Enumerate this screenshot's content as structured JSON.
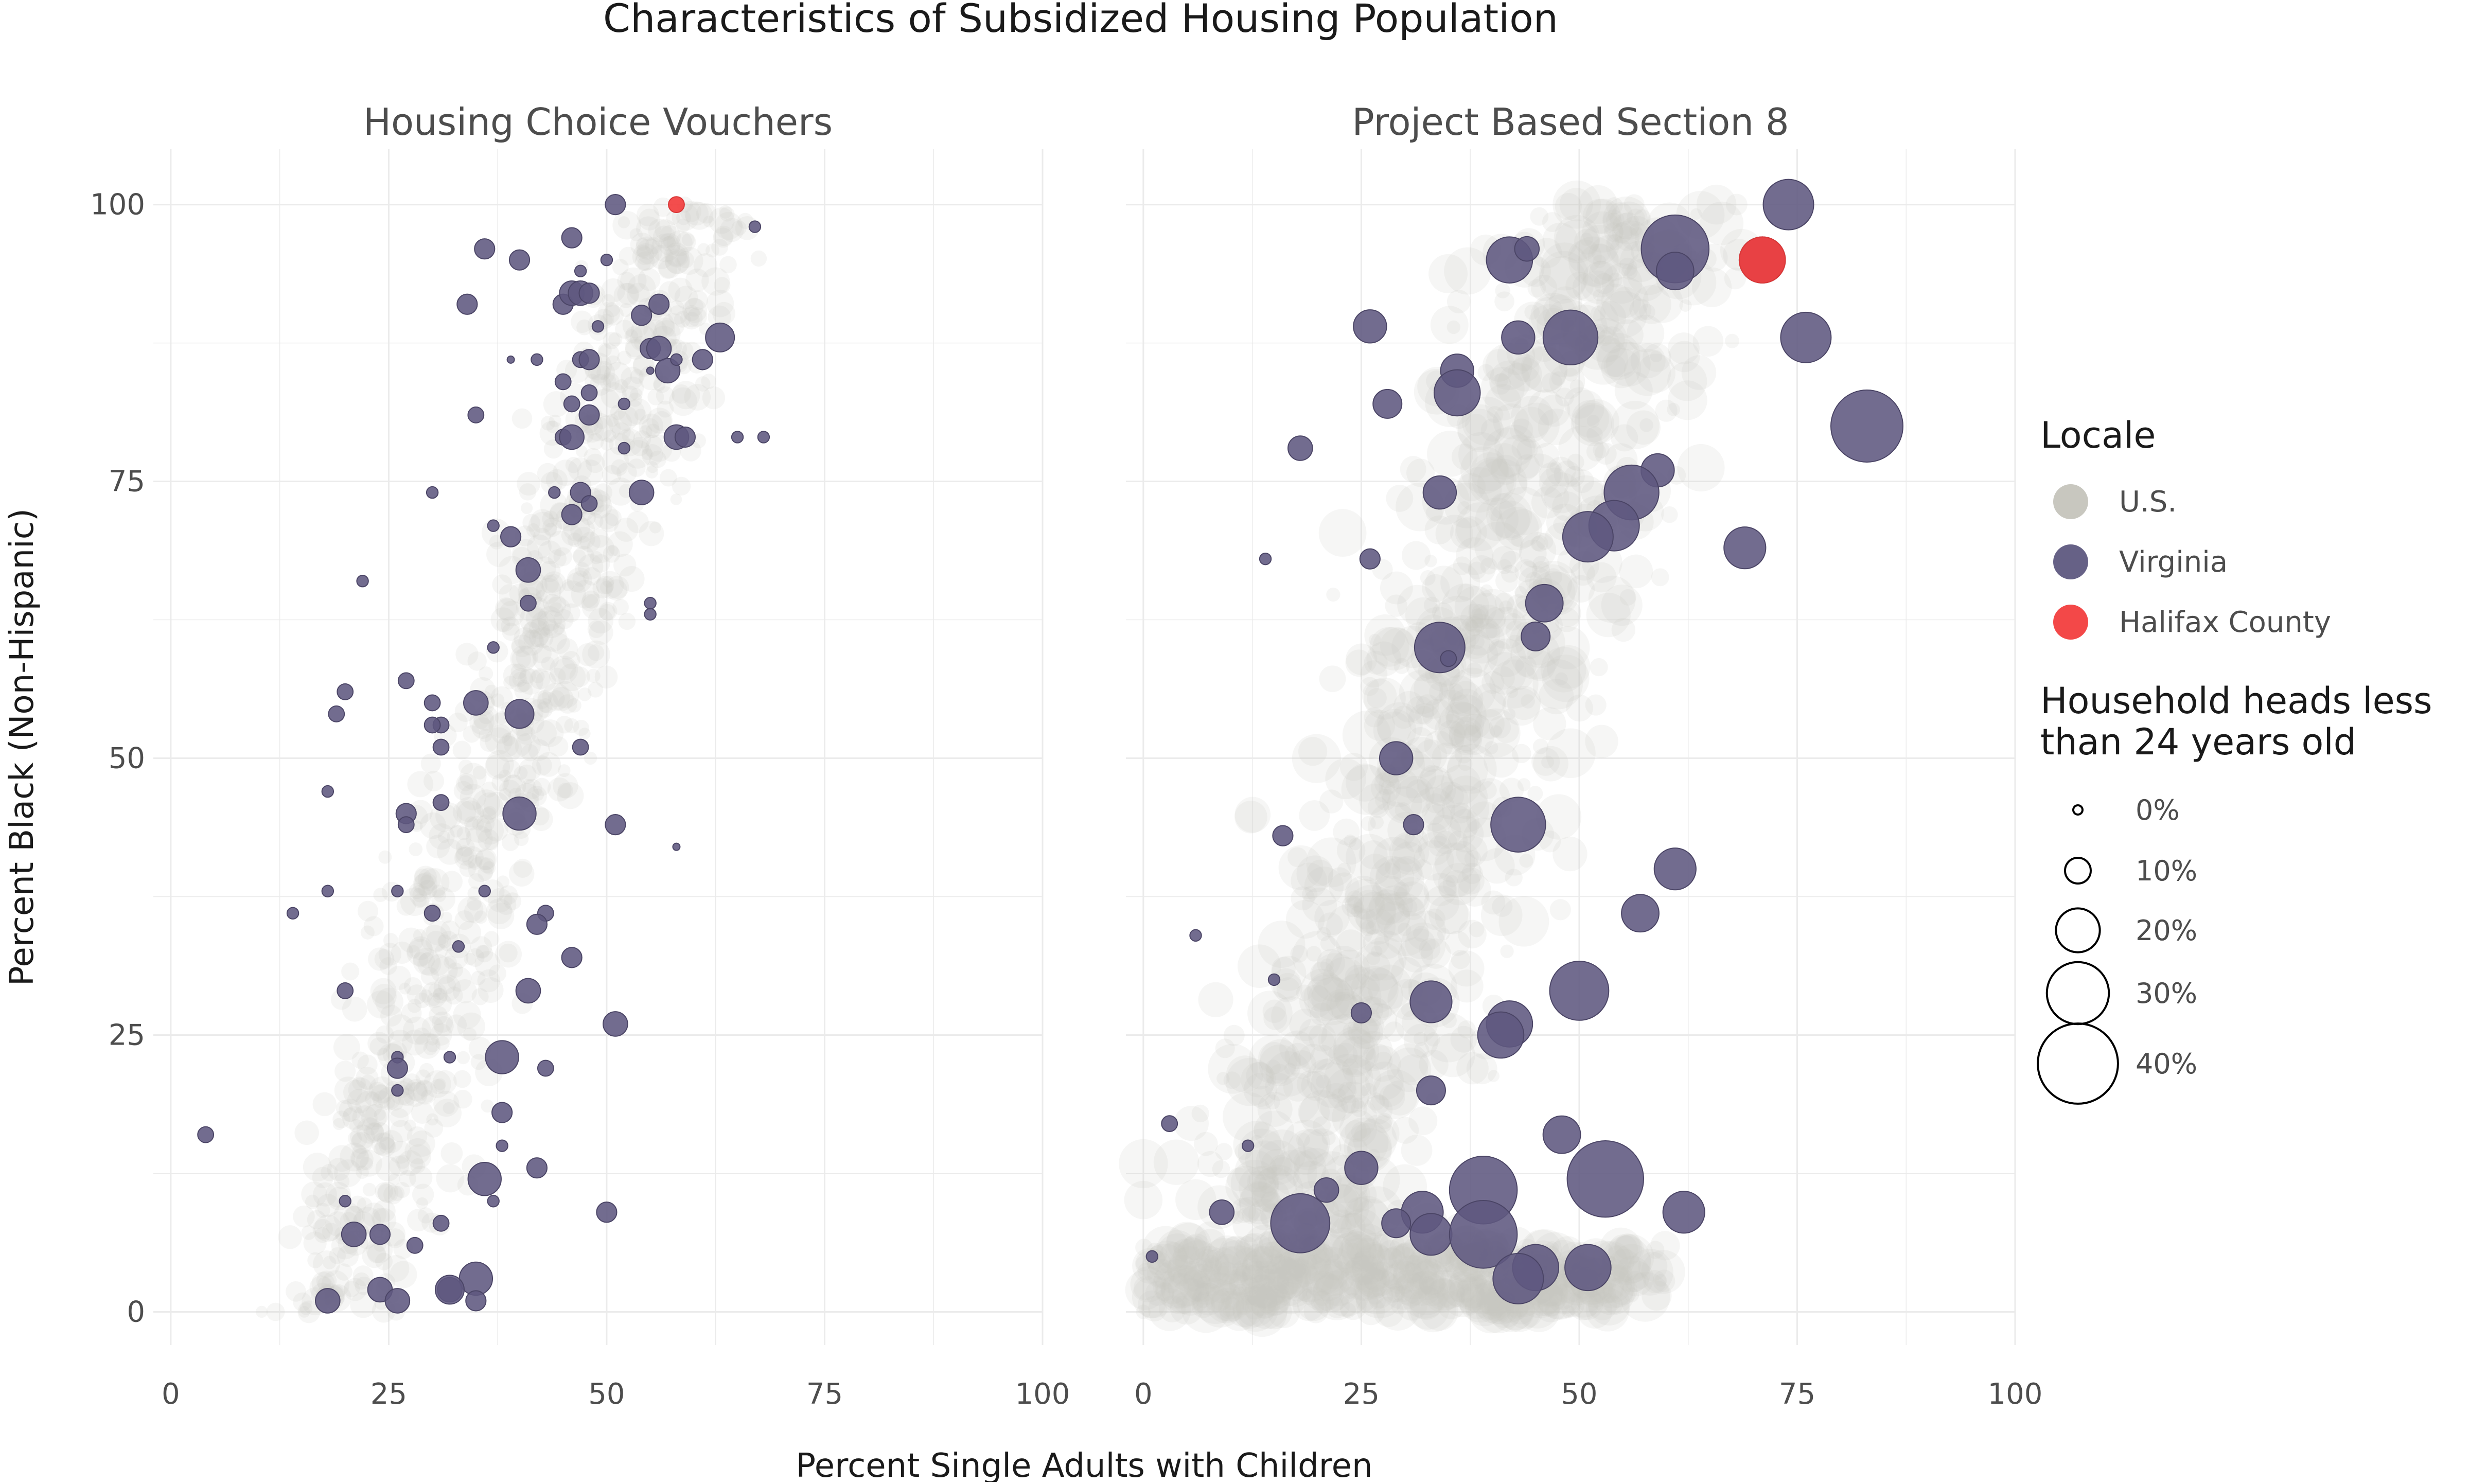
{
  "chart_data": {
    "type": "scatter",
    "title": "Characteristics of Subsidized Housing Population",
    "xlabel": "Percent Single Adults with Children",
    "ylabel": "Percent Black (Non-Hispanic)",
    "xlim": [
      -2,
      100
    ],
    "ylim": [
      -3,
      105
    ],
    "x_ticks": [
      0,
      25,
      50,
      75,
      100
    ],
    "y_ticks": [
      0,
      25,
      50,
      75,
      100
    ],
    "x_tick_labels": [
      "0",
      "25",
      "50",
      "75",
      "100"
    ],
    "y_tick_labels": [
      "0",
      "25",
      "50",
      "75",
      "100"
    ],
    "grid": true,
    "size_variable": "Household heads less than 24 years old",
    "colors": {
      "us": "#c8c7bf",
      "virginia": "#5e5880",
      "halifax": "#f23e3e"
    },
    "legend": {
      "placement": "right",
      "color_title": "Locale",
      "color_items": [
        {
          "label": "U.S.",
          "color": "#c8c7bf"
        },
        {
          "label": "Virginia",
          "color": "#5e5880"
        },
        {
          "label": "Halifax County",
          "color": "#f23e3e"
        }
      ],
      "size_title_line1": "Household heads less",
      "size_title_line2": "than 24 years old",
      "size_items": [
        {
          "label": "0%",
          "value": 0
        },
        {
          "label": "10%",
          "value": 10
        },
        {
          "label": "20%",
          "value": 20
        },
        {
          "label": "30%",
          "value": 30
        },
        {
          "label": "40%",
          "value": 40
        }
      ]
    },
    "panels": [
      {
        "title": "Housing Choice Vouchers",
        "series": [
          {
            "name": "Virginia",
            "points": [
              [
                51,
                100,
                3
              ],
              [
                36,
                96,
                3
              ],
              [
                40,
                95,
                3
              ],
              [
                46,
                97,
                3
              ],
              [
                50,
                95,
                1
              ],
              [
                45,
                91,
                3
              ],
              [
                46,
                92,
                4
              ],
              [
                47,
                92,
                4
              ],
              [
                48,
                92,
                3
              ],
              [
                34,
                91,
                3
              ],
              [
                47,
                94,
                1
              ],
              [
                49,
                89,
                1
              ],
              [
                54,
                90,
                3
              ],
              [
                56,
                91,
                3
              ],
              [
                55,
                87,
                3
              ],
              [
                56,
                87,
                4
              ],
              [
                57,
                85,
                4
              ],
              [
                58,
                86,
                1
              ],
              [
                63,
                88,
                5
              ],
              [
                61,
                86,
                3
              ],
              [
                67,
                98,
                1
              ],
              [
                45,
                84,
                2
              ],
              [
                42,
                86,
                1
              ],
              [
                47,
                86,
                2
              ],
              [
                48,
                86,
                3
              ],
              [
                39,
                86,
                0
              ],
              [
                48,
                83,
                2
              ],
              [
                46,
                82,
                2
              ],
              [
                52,
                82,
                1
              ],
              [
                35,
                81,
                2
              ],
              [
                48,
                81,
                3
              ],
              [
                45,
                79,
                2
              ],
              [
                46,
                79,
                4
              ],
              [
                58,
                79,
                4
              ],
              [
                59,
                79,
                3
              ],
              [
                65,
                79,
                1
              ],
              [
                68,
                79,
                1
              ],
              [
                52,
                78,
                1
              ],
              [
                30,
                74,
                1
              ],
              [
                44,
                74,
                1
              ],
              [
                47,
                74,
                3
              ],
              [
                48,
                73,
                2
              ],
              [
                54,
                74,
                4
              ],
              [
                46,
                72,
                3
              ],
              [
                37,
                71,
                1
              ],
              [
                39,
                70,
                3
              ],
              [
                41,
                67,
                4
              ],
              [
                22,
                66,
                1
              ],
              [
                41,
                64,
                2
              ],
              [
                55,
                64,
                1
              ],
              [
                55,
                63,
                1
              ],
              [
                37,
                60,
                1
              ],
              [
                27,
                57,
                2
              ],
              [
                20,
                56,
                2
              ],
              [
                35,
                55,
                4
              ],
              [
                40,
                54,
                5
              ],
              [
                30,
                55,
                2
              ],
              [
                19,
                54,
                2
              ],
              [
                31,
                53,
                2
              ],
              [
                30,
                53,
                2
              ],
              [
                31,
                51,
                2
              ],
              [
                47,
                51,
                2
              ],
              [
                18,
                47,
                1
              ],
              [
                31,
                46,
                2
              ],
              [
                40,
                45,
                6
              ],
              [
                27,
                45,
                3
              ],
              [
                27,
                44,
                2
              ],
              [
                51,
                44,
                3
              ],
              [
                18,
                38,
                1
              ],
              [
                26,
                38,
                1
              ],
              [
                36,
                38,
                1
              ],
              [
                14,
                36,
                1
              ],
              [
                30,
                36,
                2
              ],
              [
                43,
                36,
                2
              ],
              [
                42,
                35,
                3
              ],
              [
                33,
                33,
                1
              ],
              [
                46,
                32,
                3
              ],
              [
                20,
                29,
                2
              ],
              [
                41,
                29,
                4
              ],
              [
                51,
                26,
                4
              ],
              [
                38,
                23,
                6
              ],
              [
                26,
                23,
                1
              ],
              [
                32,
                23,
                1
              ],
              [
                26,
                22,
                3
              ],
              [
                43,
                22,
                2
              ],
              [
                26,
                20,
                1
              ],
              [
                38,
                18,
                3
              ],
              [
                4,
                16,
                2
              ],
              [
                38,
                15,
                1
              ],
              [
                36,
                12,
                6
              ],
              [
                42,
                13,
                3
              ],
              [
                37,
                10,
                1
              ],
              [
                20,
                10,
                1
              ],
              [
                50,
                9,
                3
              ],
              [
                21,
                7,
                4
              ],
              [
                24,
                7,
                3
              ],
              [
                31,
                8,
                2
              ],
              [
                28,
                6,
                2
              ],
              [
                35,
                3,
                6
              ],
              [
                32,
                2,
                4
              ],
              [
                32,
                2,
                5
              ],
              [
                24,
                2,
                4
              ],
              [
                18,
                1,
                4
              ],
              [
                26,
                1,
                4
              ],
              [
                35,
                1,
                3
              ],
              [
                58,
                42,
                0
              ],
              [
                55,
                85,
                0
              ]
            ]
          },
          {
            "name": "Halifax County",
            "points": [
              [
                58,
                100,
                2
              ]
            ]
          }
        ]
      },
      {
        "title": "Project Based Section 8",
        "series": [
          {
            "name": "Virginia",
            "points": [
              [
                74,
                100,
                10
              ],
              [
                61,
                96,
                14
              ],
              [
                42,
                95,
                9
              ],
              [
                44,
                96,
                4
              ],
              [
                61,
                94,
                7
              ],
              [
                71,
                95,
                9
              ],
              [
                26,
                89,
                6
              ],
              [
                43,
                88,
                6
              ],
              [
                49,
                88,
                11
              ],
              [
                76,
                88,
                10
              ],
              [
                36,
                85,
                6
              ],
              [
                36,
                83,
                9
              ],
              [
                28,
                82,
                5
              ],
              [
                83,
                80,
                15
              ],
              [
                18,
                78,
                4
              ],
              [
                59,
                76,
                6
              ],
              [
                56,
                74,
                11
              ],
              [
                34,
                74,
                6
              ],
              [
                54,
                71,
                10
              ],
              [
                51,
                70,
                10
              ],
              [
                69,
                69,
                8
              ],
              [
                14,
                68,
                1
              ],
              [
                26,
                68,
                3
              ],
              [
                46,
                64,
                7
              ],
              [
                45,
                61,
                5
              ],
              [
                34,
                60,
                10
              ],
              [
                35,
                59,
                2
              ],
              [
                29,
                50,
                6
              ],
              [
                43,
                44,
                11
              ],
              [
                31,
                44,
                3
              ],
              [
                16,
                43,
                3
              ],
              [
                61,
                40,
                8
              ],
              [
                57,
                36,
                7
              ],
              [
                6,
                34,
                1
              ],
              [
                15,
                30,
                1
              ],
              [
                50,
                29,
                12
              ],
              [
                33,
                28,
                8
              ],
              [
                42,
                26,
                9
              ],
              [
                41,
                25,
                9
              ],
              [
                25,
                27,
                3
              ],
              [
                33,
                20,
                5
              ],
              [
                3,
                17,
                2
              ],
              [
                48,
                16,
                7
              ],
              [
                12,
                15,
                1
              ],
              [
                39,
                11,
                14
              ],
              [
                53,
                12,
                16
              ],
              [
                25,
                13,
                6
              ],
              [
                21,
                11,
                4
              ],
              [
                9,
                9,
                4
              ],
              [
                32,
                9,
                8
              ],
              [
                62,
                9,
                8
              ],
              [
                18,
                8,
                12
              ],
              [
                29,
                8,
                5
              ],
              [
                33,
                7,
                8
              ],
              [
                39,
                7,
                14
              ],
              [
                45,
                4,
                9
              ],
              [
                43,
                3,
                10
              ],
              [
                51,
                4,
                9
              ],
              [
                1,
                5,
                1
              ]
            ]
          },
          {
            "name": "Halifax County",
            "points": [
              [
                71,
                95,
                9
              ]
            ]
          }
        ]
      }
    ]
  }
}
